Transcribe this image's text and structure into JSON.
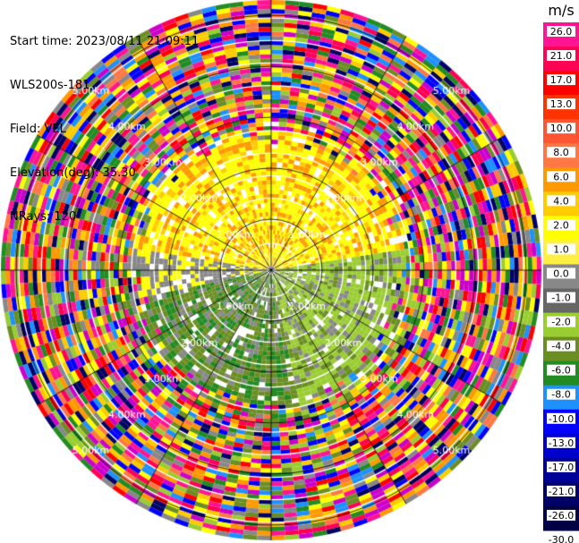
{
  "info": {
    "start_time": "Start time: 2023/08/11 21:09:11",
    "instrument": "WLS200s-181",
    "field": "Field: VEL",
    "elevation": "Elevation(deg): 35.30",
    "nrays": "NRays: 120"
  },
  "chart_data": {
    "type": "heatmap",
    "projection": "polar-ppi",
    "rays": 120,
    "ring_labels": [
      "1.00km",
      "2.00km",
      "3.00km",
      "4.00km",
      "5.00km"
    ],
    "range_km_max": 5.3,
    "colorbar": {
      "title": "m/s",
      "tick_labels": [
        "26.0",
        "21.0",
        "17.0",
        "13.0",
        "10.0",
        "8.0",
        "6.0",
        "4.0",
        "2.0",
        "1.0",
        "0.0",
        "-1.0",
        "-2.0",
        "-4.0",
        "-6.0",
        "-8.0",
        "-10.0",
        "-13.0",
        "-17.0",
        "-21.0",
        "-26.0",
        "-30.0"
      ],
      "colors": [
        "#ff1493",
        "#ff0055",
        "#ff0000",
        "#ff3300",
        "#ff5533",
        "#ff7744",
        "#ff9900",
        "#ffcc00",
        "#ffff00",
        "#ffee44",
        "#888888",
        "#666666",
        "#9acd32",
        "#6b8e23",
        "#228b22",
        "#1e90ff",
        "#0000ff",
        "#0000cc",
        "#000099",
        "#000066",
        "#000044"
      ]
    }
  }
}
